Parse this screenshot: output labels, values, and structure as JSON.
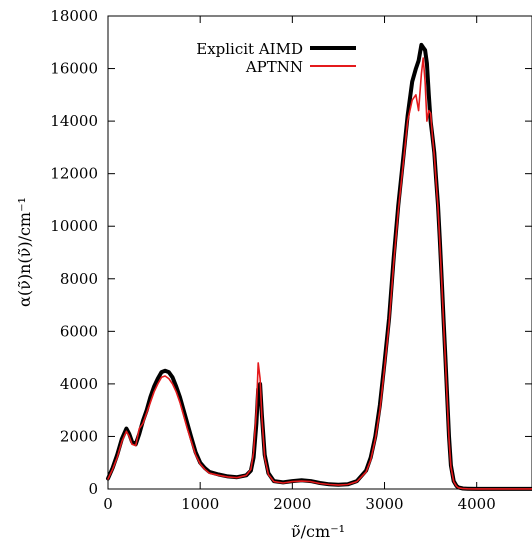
{
  "chart_data": {
    "type": "line",
    "xlabel": "ν̃/cm⁻¹",
    "ylabel": "α(ν̃)n(ν̃)/cm⁻¹",
    "xlim": [
      0,
      4600
    ],
    "ylim": [
      0,
      18000
    ],
    "x_ticks": [
      0,
      1000,
      2000,
      3000,
      4000
    ],
    "x_tick_labels": [
      "0",
      "1000",
      "2000",
      "3000",
      "4000"
    ],
    "y_ticks": [
      0,
      2000,
      4000,
      6000,
      8000,
      10000,
      12000,
      14000,
      16000,
      18000
    ],
    "y_tick_labels": [
      "0",
      "2000",
      "4000",
      "6000",
      "8000",
      "10000",
      "12000",
      "14000",
      "16000",
      "18000"
    ],
    "grid": false,
    "legend_position": "top-left",
    "series": [
      {
        "name": "Explicit AIMD",
        "color": "#000000",
        "x": [
          0,
          50,
          100,
          150,
          200,
          230,
          260,
          300,
          340,
          380,
          420,
          460,
          500,
          540,
          580,
          620,
          660,
          700,
          740,
          780,
          820,
          860,
          900,
          950,
          1000,
          1050,
          1100,
          1200,
          1300,
          1400,
          1500,
          1550,
          1580,
          1610,
          1630,
          1650,
          1670,
          1700,
          1740,
          1800,
          1900,
          2000,
          2100,
          2200,
          2300,
          2400,
          2500,
          2600,
          2700,
          2800,
          2850,
          2900,
          2950,
          3000,
          3050,
          3100,
          3150,
          3200,
          3250,
          3300,
          3340,
          3370,
          3400,
          3420,
          3440,
          3460,
          3480,
          3500,
          3520,
          3540,
          3560,
          3580,
          3600,
          3620,
          3640,
          3660,
          3680,
          3700,
          3720,
          3750,
          3780,
          3800,
          3850,
          3900,
          4000,
          4200,
          4400,
          4600
        ],
        "y": [
          400,
          800,
          1300,
          1900,
          2300,
          2100,
          1800,
          1700,
          2100,
          2600,
          3000,
          3500,
          3900,
          4200,
          4450,
          4500,
          4450,
          4250,
          3900,
          3500,
          3000,
          2500,
          2000,
          1400,
          1000,
          800,
          650,
          550,
          480,
          450,
          520,
          700,
          1200,
          2500,
          3800,
          4000,
          2800,
          1300,
          600,
          300,
          250,
          300,
          330,
          300,
          230,
          180,
          160,
          180,
          300,
          700,
          1200,
          2000,
          3200,
          4800,
          6500,
          8800,
          10800,
          12500,
          14200,
          15500,
          16000,
          16300,
          16900,
          16800,
          16700,
          16200,
          15000,
          14000,
          13400,
          12800,
          11800,
          10800,
          9500,
          8000,
          6500,
          5000,
          3500,
          2000,
          900,
          300,
          120,
          60,
          20,
          10,
          5,
          2,
          2,
          2
        ]
      },
      {
        "name": "APTNN",
        "color": "#e41a1c",
        "x": [
          0,
          50,
          100,
          150,
          200,
          230,
          260,
          300,
          340,
          380,
          420,
          460,
          500,
          540,
          580,
          620,
          660,
          700,
          740,
          780,
          820,
          860,
          900,
          950,
          1000,
          1050,
          1100,
          1200,
          1300,
          1400,
          1500,
          1550,
          1580,
          1610,
          1630,
          1650,
          1670,
          1700,
          1740,
          1800,
          1900,
          2000,
          2100,
          2200,
          2300,
          2400,
          2500,
          2600,
          2700,
          2800,
          2850,
          2900,
          2950,
          3000,
          3050,
          3100,
          3150,
          3200,
          3250,
          3300,
          3340,
          3370,
          3400,
          3420,
          3440,
          3460,
          3480,
          3500,
          3520,
          3540,
          3560,
          3580,
          3600,
          3620,
          3640,
          3660,
          3680,
          3700,
          3720,
          3750,
          3780,
          3800,
          3850,
          3900,
          4000,
          4200,
          4400,
          4600
        ],
        "y": [
          380,
          750,
          1200,
          1800,
          2200,
          2000,
          1700,
          1650,
          2300,
          2500,
          2900,
          3300,
          3700,
          4000,
          4250,
          4300,
          4200,
          4000,
          3700,
          3300,
          2800,
          2300,
          1850,
          1300,
          950,
          750,
          600,
          520,
          460,
          430,
          520,
          750,
          1400,
          3000,
          4800,
          4200,
          2700,
          1200,
          550,
          280,
          230,
          280,
          300,
          280,
          210,
          170,
          150,
          170,
          280,
          650,
          1100,
          1900,
          3000,
          4600,
          6300,
          8600,
          10600,
          12300,
          14000,
          14800,
          15000,
          14400,
          15800,
          16400,
          15500,
          14000,
          14400,
          14300,
          13400,
          12700,
          11700,
          10700,
          9400,
          7900,
          6400,
          4900,
          3400,
          1900,
          850,
          280,
          110,
          50,
          15,
          8,
          4,
          2,
          2,
          2
        ]
      }
    ]
  }
}
